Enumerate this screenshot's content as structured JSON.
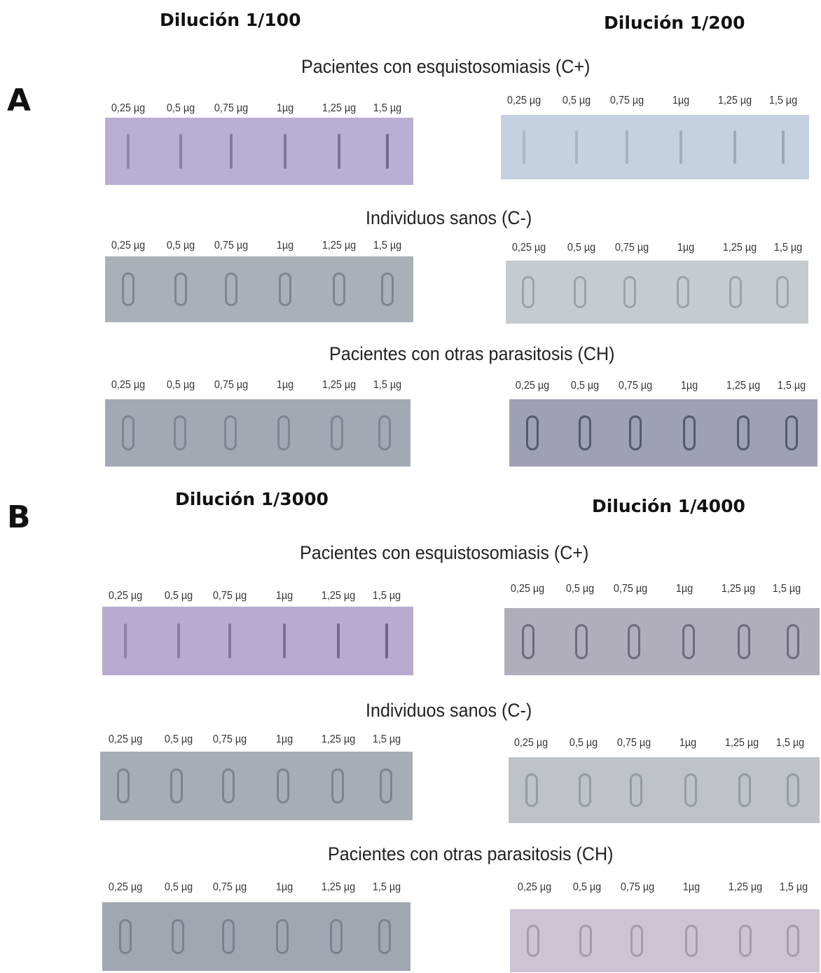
{
  "colors": {
    "strip_purple": "#b9aed3",
    "strip_blue": "#c2d0df",
    "strip_gray": "#a7aeb6",
    "strip_gray_light": "#c0c4c8",
    "strip_gray_dark": "#9ea5b0",
    "strip_pinkgray": "#b5afbb",
    "strip_lavender": "#cfc5d4"
  },
  "dose_labels": [
    "0,25 µg",
    "0,5 µg",
    "0,75 µg",
    "1µg",
    "1,25 µg",
    "1,5 µg"
  ],
  "panels": [
    {
      "letter": "A",
      "left_dilution": "Dilución 1/100",
      "right_dilution": "Dilución 1/200",
      "groups": [
        {
          "title": "Pacientes con esquistosomiasis (C+)",
          "left_strip": {
            "shape": "line",
            "bg": "#b9aed3",
            "slot": "#6d6788"
          },
          "right_strip": {
            "shape": "line",
            "bg": "#c3d1e0",
            "slot": "#9aa4b3"
          }
        },
        {
          "title": "Individuos sanos (C-)",
          "left_strip": {
            "shape": "ring",
            "bg": "#a9b0b7",
            "slot": "#7d858e"
          },
          "right_strip": {
            "shape": "ring",
            "bg": "#c6cbcf",
            "slot": "#9da3a8"
          }
        },
        {
          "title": "Pacientes con otras parasitosis (CH)",
          "left_strip": {
            "shape": "ring",
            "bg": "#a3a9b3",
            "slot": "#7f8591"
          },
          "right_strip": {
            "shape": "ring",
            "bg": "#a09fb8",
            "slot": "#555873"
          }
        }
      ]
    },
    {
      "letter": "B",
      "left_dilution": "Dilución 1/3000",
      "right_dilution": "Dilución 1/4000",
      "groups": [
        {
          "title": "Pacientes con esquistosomiasis (C+)",
          "left_strip": {
            "shape": "line",
            "bg": "#b7acd0",
            "slot": "#6a6285"
          },
          "right_strip": {
            "shape": "ring",
            "bg": "#b1aebb",
            "slot": "#6f6a7c"
          }
        },
        {
          "title": "Individuos sanos (C-)",
          "left_strip": {
            "shape": "ring",
            "bg": "#a6adb4",
            "slot": "#7c848c"
          },
          "right_strip": {
            "shape": "ring",
            "bg": "#bfc2c6",
            "slot": "#979ca2"
          }
        },
        {
          "title": "Pacientes con otras parasitosis (CH)",
          "left_strip": {
            "shape": "ring",
            "bg": "#a0a7b1",
            "slot": "#7c828d"
          },
          "right_strip": {
            "shape": "ring",
            "bg": "#cdc3d3",
            "slot": "#a49bab"
          }
        }
      ]
    }
  ]
}
